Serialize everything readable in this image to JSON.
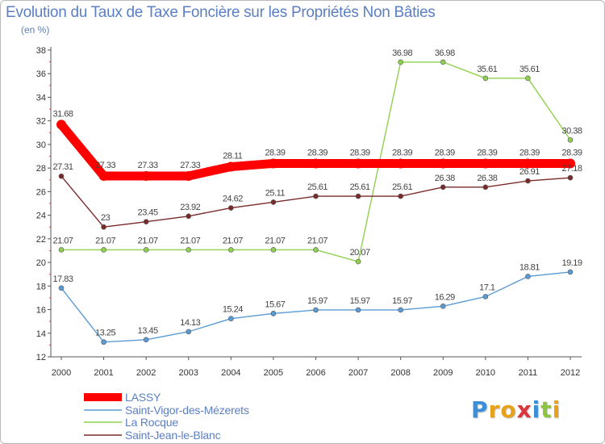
{
  "title": "Evolution du Taux de Taxe Foncière sur les Propriétés Non Bâties",
  "subtitle": "(en %)",
  "logo": "Proxiti",
  "chart_data": {
    "type": "line",
    "title": "Evolution du Taux de Taxe Foncière sur les Propriétés Non Bâties",
    "ylabel": "(en %)",
    "xlabel": "",
    "ylim": [
      12,
      38
    ],
    "yticks": [
      12,
      14,
      16,
      18,
      20,
      22,
      24,
      26,
      28,
      30,
      32,
      34,
      36,
      38
    ],
    "x": [
      "2000",
      "2001",
      "2002",
      "2003",
      "2004",
      "2005",
      "2006",
      "2007",
      "2008",
      "2009",
      "2010",
      "2011",
      "2012"
    ],
    "series": [
      {
        "name": "LASSY",
        "color": "#ff0000",
        "values": [
          31.68,
          27.33,
          27.33,
          27.33,
          28.11,
          28.39,
          28.39,
          28.39,
          28.39,
          28.39,
          28.39,
          28.39,
          28.39
        ],
        "labels": [
          "31.68",
          "27.33",
          "27.33",
          "27.33",
          "28.11",
          "28.39",
          "28.39",
          "28.39",
          "28.39",
          "28.39",
          "28.39",
          "28.39",
          "28.39"
        ]
      },
      {
        "name": "Saint-Vigor-des-Mézerets",
        "color": "#5b9bd5",
        "values": [
          17.83,
          13.25,
          13.45,
          14.13,
          15.24,
          15.67,
          15.97,
          15.97,
          15.97,
          16.29,
          17.1,
          18.81,
          19.19
        ],
        "labels": [
          "17.83",
          "13.25",
          "13.45",
          "14.13",
          "15.24",
          "15.67",
          "15.97",
          "15.97",
          "15.97",
          "16.29",
          "17.1",
          "18.81",
          "19.19"
        ]
      },
      {
        "name": "La Rocque",
        "color": "#8fd14f",
        "values": [
          21.07,
          21.07,
          21.07,
          21.07,
          21.07,
          21.07,
          21.07,
          20.07,
          36.98,
          36.98,
          35.61,
          35.61,
          30.38
        ],
        "labels": [
          "21.07",
          "21.07",
          "21.07",
          "21.07",
          "21.07",
          "21.07",
          "21.07",
          "20.07",
          "36.98",
          "36.98",
          "35.61",
          "35.61",
          "30.38"
        ]
      },
      {
        "name": "Saint-Jean-le-Blanc",
        "color": "#7b2a2a",
        "values": [
          27.31,
          23,
          23.45,
          23.92,
          24.62,
          25.11,
          25.61,
          25.61,
          25.61,
          26.38,
          26.38,
          26.91,
          27.18
        ],
        "labels": [
          "27.31",
          "23",
          "23.45",
          "23.92",
          "24.62",
          "25.11",
          "25.61",
          "25.61",
          "25.61",
          "26.38",
          "26.38",
          "26.91",
          "27.18"
        ]
      }
    ],
    "grid": false,
    "legend": "bottom-left"
  }
}
